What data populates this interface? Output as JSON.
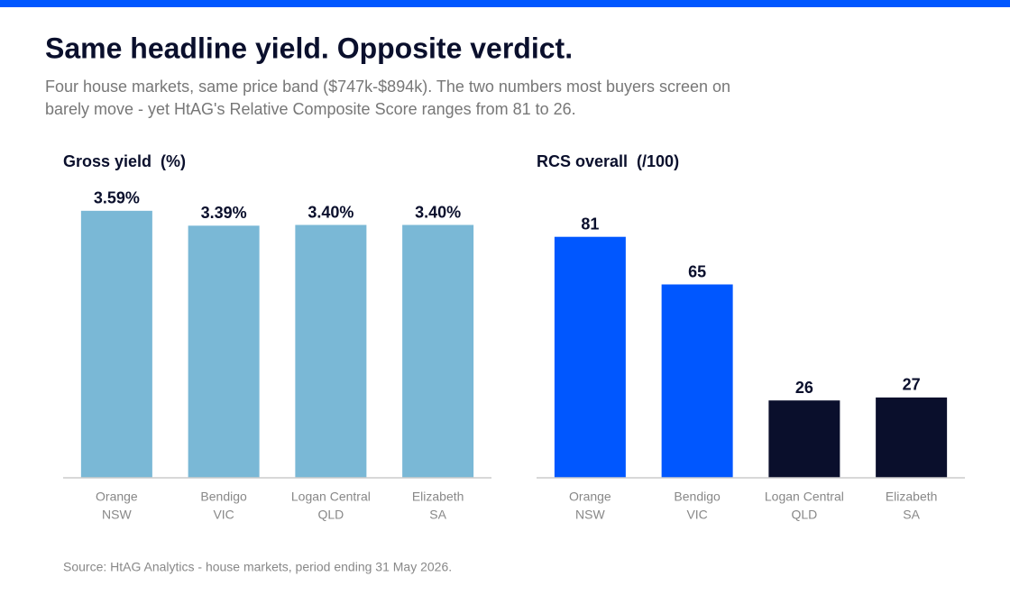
{
  "title": "Same headline yield. Opposite verdict.",
  "subtitle": [
    "Four house markets, same price band ($747k-$894k). The two numbers most buyers screen on",
    "barely move - yet HtAG's Relative Composite Score ranges from 81 to 26."
  ],
  "source": "Source: HtAG Analytics - house markets, period ending 31 May 2026.",
  "chart_data": [
    {
      "type": "bar",
      "title": "Gross yield  (%)",
      "categories": [
        [
          "Orange",
          "NSW"
        ],
        [
          "Bendigo",
          "VIC"
        ],
        [
          "Logan Central",
          "QLD"
        ],
        [
          "Elizabeth",
          "SA"
        ]
      ],
      "values": [
        3.59,
        3.39,
        3.4,
        3.4
      ],
      "value_labels": [
        "3.59%",
        "3.39%",
        "3.40%",
        "3.40%"
      ],
      "colors": [
        "#7ab8d6",
        "#7ab8d6",
        "#7ab8d6",
        "#7ab8d6"
      ],
      "ylim": [
        0,
        4
      ]
    },
    {
      "type": "bar",
      "title": "RCS overall  (/100)",
      "categories": [
        [
          "Orange",
          "NSW"
        ],
        [
          "Bendigo",
          "VIC"
        ],
        [
          "Logan Central",
          "QLD"
        ],
        [
          "Elizabeth",
          "SA"
        ]
      ],
      "values": [
        81,
        65,
        26,
        27
      ],
      "colors": [
        "#0057ff",
        "#0057ff",
        "#0a0f2c",
        "#0a0f2c"
      ],
      "ylim": [
        0,
        100
      ]
    }
  ]
}
